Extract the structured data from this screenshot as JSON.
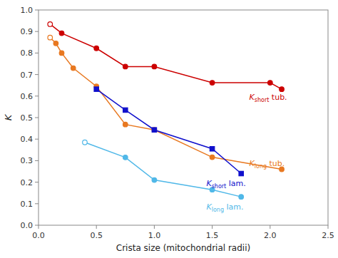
{
  "chart_data": {
    "type": "line",
    "x_label": "Crista size (mitochondrial radii)",
    "y_label": "K",
    "xlim": [
      0,
      2.5
    ],
    "ylim": [
      0,
      1.0
    ],
    "xticks": [
      {
        "value": 0,
        "label": "0.0"
      },
      0.5,
      {
        "value": 1,
        "label": "1.0"
      },
      1.5,
      {
        "value": 2,
        "label": "2.0"
      },
      2.5
    ],
    "yticks": [
      {
        "value": 0,
        "label": "0.0"
      },
      0.1,
      0.2,
      0.3,
      0.4,
      0.5,
      0.6,
      0.7,
      0.8,
      0.9,
      {
        "value": 1,
        "label": "1.0"
      }
    ],
    "grid": false,
    "series": [
      {
        "x": [
          0.1,
          0.2,
          0.5,
          0.75,
          1.0,
          1.5,
          2.0,
          2.1
        ],
        "values": [
          0.934,
          0.892,
          0.822,
          0.737,
          0.737,
          0.662,
          0.662,
          0.632
        ],
        "color": "#cc0000",
        "marker": "circle"
      },
      {
        "x": [
          0.1,
          0.15,
          0.2,
          0.3,
          0.5,
          0.75,
          1.0,
          1.5,
          2.1
        ],
        "values": [
          0.872,
          0.845,
          0.8,
          0.73,
          0.645,
          0.468,
          0.443,
          0.316,
          0.26
        ],
        "color": "#e87820",
        "marker": "circle"
      },
      {
        "x": [
          0.5,
          0.75,
          1.0,
          1.5,
          1.75
        ],
        "values": [
          0.632,
          0.535,
          0.443,
          0.355,
          0.24
        ],
        "color": "#1010cc",
        "marker": "square"
      },
      {
        "x": [
          0.4,
          0.75,
          1.0,
          1.5,
          1.75
        ],
        "values": [
          0.385,
          0.315,
          0.21,
          0.165,
          0.132
        ],
        "color": "#50b8e8",
        "marker": "circle"
      }
    ],
    "annotations": [
      {
        "text": "K",
        "sub": "short",
        "suffix": " tub.",
        "x": 1.82,
        "y": 0.595,
        "color": "#cc0000"
      },
      {
        "text": "K",
        "sub": "long",
        "suffix": " tub.",
        "x": 1.82,
        "y": 0.287,
        "color": "#e87820"
      },
      {
        "text": "K",
        "sub": "short",
        "suffix": " lam.",
        "x": 1.45,
        "y": 0.195,
        "color": "#1010cc"
      },
      {
        "text": "K",
        "sub": "long",
        "suffix": " lam.",
        "x": 1.45,
        "y": 0.085,
        "color": "#50b8e8"
      }
    ]
  }
}
